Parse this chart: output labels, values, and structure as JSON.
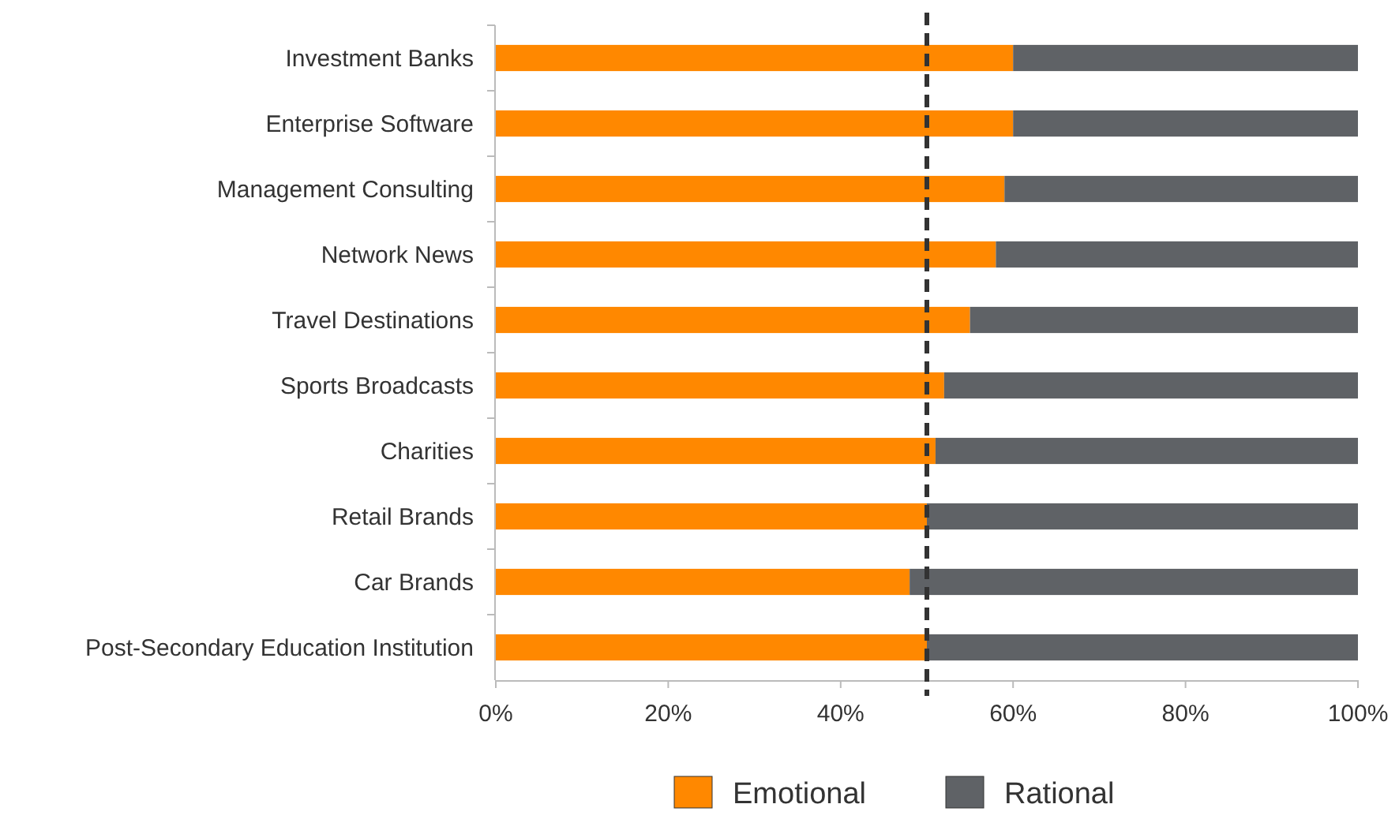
{
  "chart_data": {
    "type": "bar",
    "orientation": "horizontal",
    "stacked": true,
    "categories": [
      "Investment Banks",
      "Enterprise Software",
      "Management Consulting",
      "Network News",
      "Travel Destinations",
      "Sports Broadcasts",
      "Charities",
      "Retail Brands",
      "Car Brands",
      "Post-Secondary Education Institution"
    ],
    "series": [
      {
        "name": "Emotional",
        "color": "#ff8800",
        "values": [
          60,
          60,
          59,
          58,
          55,
          52,
          51,
          50,
          48,
          50
        ]
      },
      {
        "name": "Rational",
        "color": "#5f6266",
        "values": [
          40,
          40,
          41,
          42,
          45,
          48,
          49,
          50,
          52,
          50
        ]
      }
    ],
    "xlim": [
      0,
      100
    ],
    "xticks": [
      {
        "value": 0,
        "label": "0%"
      },
      {
        "value": 20,
        "label": "20%"
      },
      {
        "value": 40,
        "label": "40%"
      },
      {
        "value": 60,
        "label": "60%"
      },
      {
        "value": 80,
        "label": "80%"
      },
      {
        "value": 100,
        "label": "100%"
      }
    ],
    "ref_lines": [
      {
        "axis": "x",
        "value": 50,
        "color": "#333333",
        "line_style": "dashed"
      }
    ],
    "legend": "bottom",
    "grid": false
  }
}
